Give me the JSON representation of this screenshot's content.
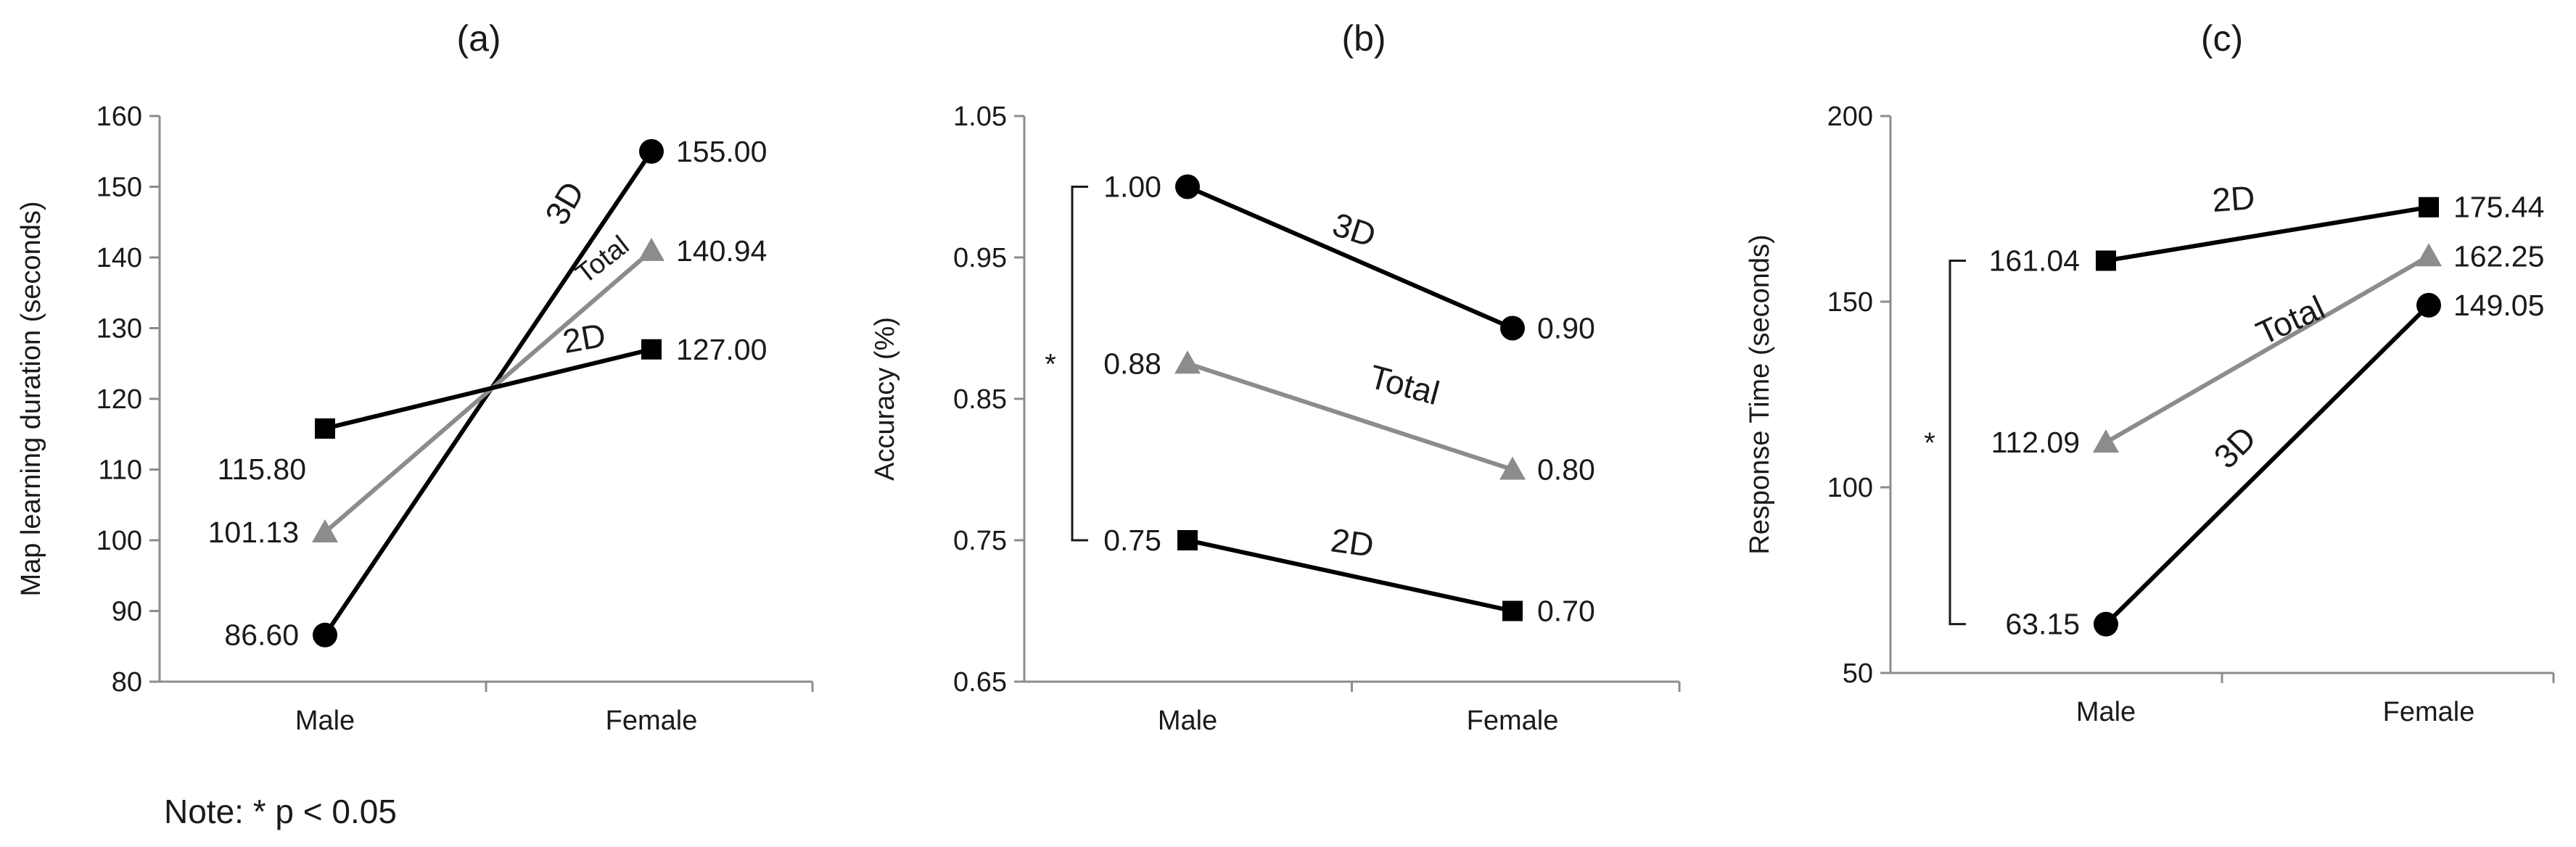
{
  "note": "Note: * p < 0.05",
  "chart_data": [
    {
      "type": "line",
      "title": "(a)",
      "xlabel": "",
      "ylabel": "Map learning duration (seconds)",
      "categories": [
        "Male",
        "Female"
      ],
      "ylim": [
        80,
        160
      ],
      "yticks": [
        80,
        90,
        100,
        110,
        120,
        130,
        140,
        150,
        160
      ],
      "ytick_labels": [
        "80",
        "90",
        "100",
        "110",
        "120",
        "130",
        "140",
        "150",
        "160"
      ],
      "grid": false,
      "series": [
        {
          "name": "3D",
          "values": [
            86.6,
            155.0
          ],
          "labels": [
            "86.60",
            "155.00"
          ],
          "color": "#000000",
          "marker": "circle"
        },
        {
          "name": "Total",
          "values": [
            101.13,
            140.94
          ],
          "labels": [
            "101.13",
            "140.94"
          ],
          "color": "#8c8c8c",
          "marker": "triangle"
        },
        {
          "name": "2D",
          "values": [
            115.8,
            127.0
          ],
          "labels": [
            "115.80",
            "127.00"
          ],
          "color": "#000000",
          "marker": "square"
        }
      ],
      "significance": []
    },
    {
      "type": "line",
      "title": "(b)",
      "xlabel": "",
      "ylabel": "Accuracy (%)",
      "categories": [
        "Male",
        "Female"
      ],
      "ylim": [
        0.65,
        1.05
      ],
      "yticks": [
        0.65,
        0.75,
        0.85,
        0.95,
        1.05
      ],
      "ytick_labels": [
        "0.65",
        "0.75",
        "0.85",
        "0.95",
        "1.05"
      ],
      "grid": false,
      "series": [
        {
          "name": "3D",
          "values": [
            1.0,
            0.9
          ],
          "labels": [
            "1.00",
            "0.90"
          ],
          "color": "#000000",
          "marker": "circle"
        },
        {
          "name": "Total",
          "values": [
            0.875,
            0.8
          ],
          "labels": [
            "0.88",
            "0.80"
          ],
          "color": "#8c8c8c",
          "marker": "triangle"
        },
        {
          "name": "2D",
          "values": [
            0.75,
            0.7
          ],
          "labels": [
            "0.75",
            "0.70"
          ],
          "color": "#000000",
          "marker": "square"
        }
      ],
      "significance": [
        {
          "from": 1.0,
          "to": 0.75,
          "label": "*"
        }
      ]
    },
    {
      "type": "line",
      "title": "(c)",
      "xlabel": "",
      "ylabel": "Response Time (seconds)",
      "categories": [
        "Male",
        "Female"
      ],
      "ylim": [
        50,
        200
      ],
      "yticks": [
        50,
        100,
        150,
        200
      ],
      "ytick_labels": [
        "50",
        "100",
        "150",
        "200"
      ],
      "grid": false,
      "series": [
        {
          "name": "3D",
          "values": [
            63.15,
            149.05
          ],
          "labels": [
            "63.15",
            "149.05"
          ],
          "color": "#000000",
          "marker": "circle"
        },
        {
          "name": "Total",
          "values": [
            112.09,
            162.25
          ],
          "labels": [
            "112.09",
            "162.25"
          ],
          "color": "#8c8c8c",
          "marker": "triangle"
        },
        {
          "name": "2D",
          "values": [
            161.04,
            175.44
          ],
          "labels": [
            "161.04",
            "175.44"
          ],
          "color": "#000000",
          "marker": "square"
        }
      ],
      "significance": [
        {
          "from": 161.04,
          "to": 63.15,
          "label": "*"
        }
      ]
    }
  ]
}
